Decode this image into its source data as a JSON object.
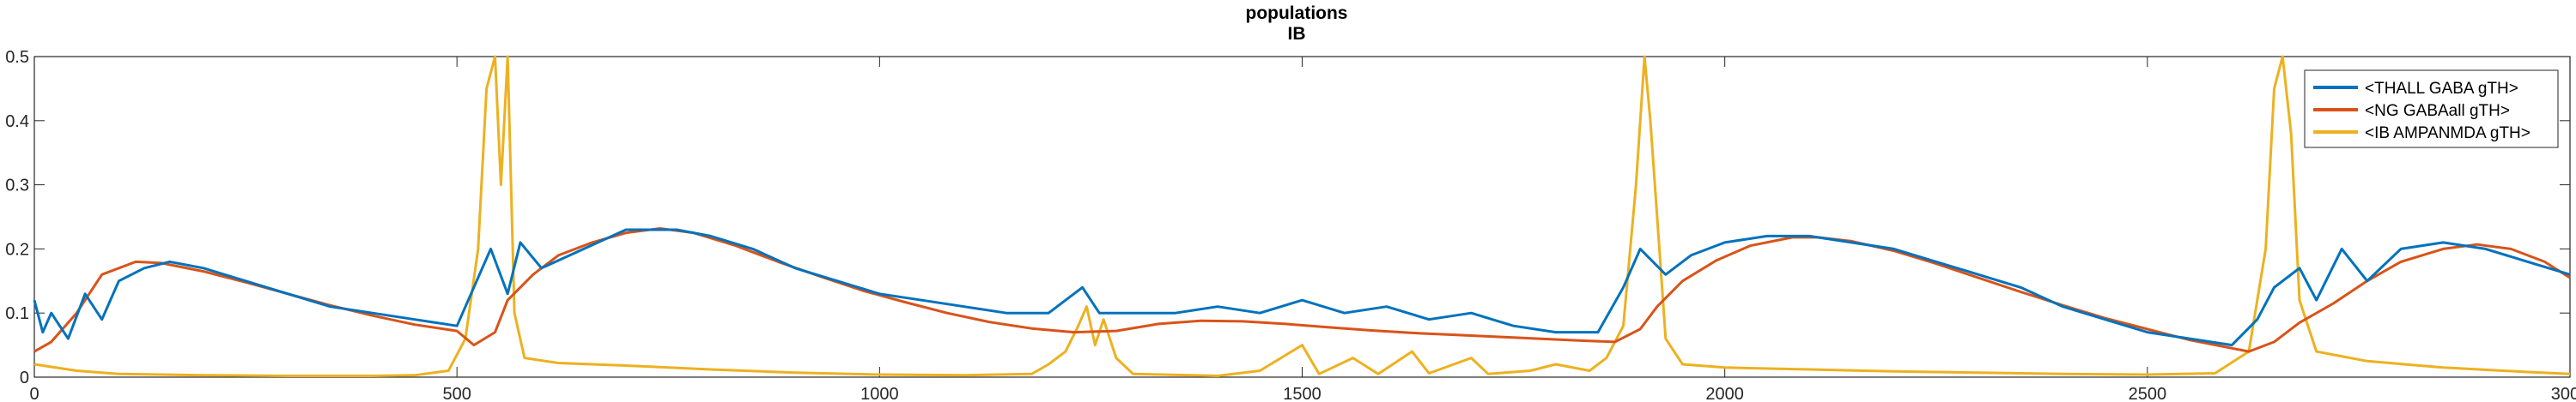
{
  "chart_data": {
    "type": "line",
    "title": "populations",
    "subtitle": "IB",
    "xlabel": "",
    "ylabel": "",
    "xlim": [
      0,
      3000
    ],
    "ylim": [
      0,
      0.5
    ],
    "x_ticks": [
      0,
      500,
      1000,
      1500,
      2000,
      2500,
      3000
    ],
    "y_ticks": [
      0,
      0.1,
      0.2,
      0.3,
      0.4,
      0.5
    ],
    "x_tick_labels": [
      "0",
      "500",
      "1000",
      "1500",
      "2000",
      "2500",
      "3000"
    ],
    "y_tick_labels": [
      "0",
      "0.1",
      "0.2",
      "0.3",
      "0.4",
      "0.5"
    ],
    "grid": false,
    "legend_position": "top-right",
    "series": [
      {
        "name": "<THALL GABA gTH>",
        "color": "#0072BD",
        "points": [
          [
            0,
            0.12
          ],
          [
            10,
            0.07
          ],
          [
            20,
            0.1
          ],
          [
            40,
            0.06
          ],
          [
            60,
            0.13
          ],
          [
            80,
            0.09
          ],
          [
            100,
            0.15
          ],
          [
            130,
            0.17
          ],
          [
            160,
            0.18
          ],
          [
            200,
            0.17
          ],
          [
            250,
            0.15
          ],
          [
            300,
            0.13
          ],
          [
            350,
            0.11
          ],
          [
            400,
            0.1
          ],
          [
            450,
            0.09
          ],
          [
            500,
            0.08
          ],
          [
            540,
            0.2
          ],
          [
            560,
            0.13
          ],
          [
            575,
            0.21
          ],
          [
            600,
            0.17
          ],
          [
            650,
            0.2
          ],
          [
            700,
            0.23
          ],
          [
            760,
            0.23
          ],
          [
            800,
            0.22
          ],
          [
            850,
            0.2
          ],
          [
            900,
            0.17
          ],
          [
            950,
            0.15
          ],
          [
            1000,
            0.13
          ],
          [
            1050,
            0.12
          ],
          [
            1100,
            0.11
          ],
          [
            1150,
            0.1
          ],
          [
            1200,
            0.1
          ],
          [
            1240,
            0.14
          ],
          [
            1260,
            0.1
          ],
          [
            1300,
            0.1
          ],
          [
            1350,
            0.1
          ],
          [
            1400,
            0.11
          ],
          [
            1450,
            0.1
          ],
          [
            1500,
            0.12
          ],
          [
            1550,
            0.1
          ],
          [
            1600,
            0.11
          ],
          [
            1650,
            0.09
          ],
          [
            1700,
            0.1
          ],
          [
            1750,
            0.08
          ],
          [
            1800,
            0.07
          ],
          [
            1850,
            0.07
          ],
          [
            1880,
            0.14
          ],
          [
            1900,
            0.2
          ],
          [
            1930,
            0.16
          ],
          [
            1960,
            0.19
          ],
          [
            2000,
            0.21
          ],
          [
            2050,
            0.22
          ],
          [
            2100,
            0.22
          ],
          [
            2150,
            0.21
          ],
          [
            2200,
            0.2
          ],
          [
            2250,
            0.18
          ],
          [
            2300,
            0.16
          ],
          [
            2350,
            0.14
          ],
          [
            2400,
            0.11
          ],
          [
            2450,
            0.09
          ],
          [
            2500,
            0.07
          ],
          [
            2550,
            0.06
          ],
          [
            2600,
            0.05
          ],
          [
            2630,
            0.09
          ],
          [
            2650,
            0.14
          ],
          [
            2680,
            0.17
          ],
          [
            2700,
            0.12
          ],
          [
            2730,
            0.2
          ],
          [
            2760,
            0.15
          ],
          [
            2800,
            0.2
          ],
          [
            2850,
            0.21
          ],
          [
            2900,
            0.2
          ],
          [
            2950,
            0.18
          ],
          [
            3000,
            0.16
          ]
        ]
      },
      {
        "name": "<NG GABAall gTH>",
        "color": "#D95319",
        "points": [
          [
            0,
            0.04
          ],
          [
            20,
            0.055
          ],
          [
            50,
            0.1
          ],
          [
            80,
            0.16
          ],
          [
            120,
            0.18
          ],
          [
            150,
            0.178
          ],
          [
            200,
            0.165
          ],
          [
            250,
            0.148
          ],
          [
            300,
            0.13
          ],
          [
            350,
            0.112
          ],
          [
            400,
            0.096
          ],
          [
            450,
            0.082
          ],
          [
            500,
            0.072
          ],
          [
            520,
            0.05
          ],
          [
            545,
            0.07
          ],
          [
            560,
            0.12
          ],
          [
            590,
            0.16
          ],
          [
            620,
            0.19
          ],
          [
            660,
            0.21
          ],
          [
            700,
            0.225
          ],
          [
            740,
            0.232
          ],
          [
            780,
            0.225
          ],
          [
            830,
            0.205
          ],
          [
            880,
            0.18
          ],
          [
            930,
            0.157
          ],
          [
            980,
            0.135
          ],
          [
            1030,
            0.117
          ],
          [
            1080,
            0.1
          ],
          [
            1130,
            0.086
          ],
          [
            1180,
            0.076
          ],
          [
            1230,
            0.07
          ],
          [
            1280,
            0.072
          ],
          [
            1330,
            0.083
          ],
          [
            1380,
            0.088
          ],
          [
            1430,
            0.087
          ],
          [
            1480,
            0.083
          ],
          [
            1530,
            0.078
          ],
          [
            1580,
            0.073
          ],
          [
            1630,
            0.069
          ],
          [
            1680,
            0.066
          ],
          [
            1730,
            0.063
          ],
          [
            1780,
            0.06
          ],
          [
            1830,
            0.057
          ],
          [
            1870,
            0.055
          ],
          [
            1900,
            0.075
          ],
          [
            1920,
            0.11
          ],
          [
            1950,
            0.15
          ],
          [
            1990,
            0.182
          ],
          [
            2030,
            0.205
          ],
          [
            2080,
            0.218
          ],
          [
            2110,
            0.218
          ],
          [
            2150,
            0.212
          ],
          [
            2200,
            0.197
          ],
          [
            2250,
            0.177
          ],
          [
            2300,
            0.155
          ],
          [
            2350,
            0.133
          ],
          [
            2400,
            0.112
          ],
          [
            2450,
            0.092
          ],
          [
            2500,
            0.075
          ],
          [
            2550,
            0.058
          ],
          [
            2600,
            0.045
          ],
          [
            2620,
            0.04
          ],
          [
            2650,
            0.055
          ],
          [
            2680,
            0.085
          ],
          [
            2720,
            0.115
          ],
          [
            2760,
            0.15
          ],
          [
            2800,
            0.18
          ],
          [
            2850,
            0.2
          ],
          [
            2890,
            0.207
          ],
          [
            2930,
            0.2
          ],
          [
            2970,
            0.18
          ],
          [
            3000,
            0.155
          ]
        ]
      },
      {
        "name": "<IB AMPANMDA gTH>",
        "color": "#EDB120",
        "points": [
          [
            0,
            0.02
          ],
          [
            50,
            0.01
          ],
          [
            100,
            0.005
          ],
          [
            200,
            0.003
          ],
          [
            300,
            0.002
          ],
          [
            400,
            0.002
          ],
          [
            450,
            0.003
          ],
          [
            490,
            0.01
          ],
          [
            510,
            0.06
          ],
          [
            525,
            0.2
          ],
          [
            535,
            0.45
          ],
          [
            545,
            0.5
          ],
          [
            552,
            0.3
          ],
          [
            560,
            0.5
          ],
          [
            568,
            0.1
          ],
          [
            580,
            0.03
          ],
          [
            620,
            0.022
          ],
          [
            700,
            0.018
          ],
          [
            800,
            0.012
          ],
          [
            900,
            0.007
          ],
          [
            1000,
            0.004
          ],
          [
            1100,
            0.003
          ],
          [
            1180,
            0.005
          ],
          [
            1200,
            0.02
          ],
          [
            1220,
            0.04
          ],
          [
            1235,
            0.08
          ],
          [
            1245,
            0.11
          ],
          [
            1255,
            0.05
          ],
          [
            1265,
            0.09
          ],
          [
            1280,
            0.03
          ],
          [
            1300,
            0.005
          ],
          [
            1400,
            0.002
          ],
          [
            1450,
            0.01
          ],
          [
            1500,
            0.05
          ],
          [
            1520,
            0.005
          ],
          [
            1560,
            0.03
          ],
          [
            1590,
            0.005
          ],
          [
            1630,
            0.04
          ],
          [
            1650,
            0.006
          ],
          [
            1700,
            0.03
          ],
          [
            1720,
            0.005
          ],
          [
            1770,
            0.01
          ],
          [
            1800,
            0.02
          ],
          [
            1840,
            0.01
          ],
          [
            1860,
            0.03
          ],
          [
            1880,
            0.08
          ],
          [
            1895,
            0.3
          ],
          [
            1905,
            0.5
          ],
          [
            1912,
            0.4
          ],
          [
            1920,
            0.25
          ],
          [
            1930,
            0.06
          ],
          [
            1950,
            0.02
          ],
          [
            2000,
            0.015
          ],
          [
            2100,
            0.012
          ],
          [
            2200,
            0.009
          ],
          [
            2300,
            0.007
          ],
          [
            2400,
            0.005
          ],
          [
            2500,
            0.004
          ],
          [
            2580,
            0.006
          ],
          [
            2620,
            0.04
          ],
          [
            2640,
            0.2
          ],
          [
            2650,
            0.45
          ],
          [
            2660,
            0.5
          ],
          [
            2670,
            0.38
          ],
          [
            2680,
            0.12
          ],
          [
            2700,
            0.04
          ],
          [
            2760,
            0.025
          ],
          [
            2850,
            0.015
          ],
          [
            2950,
            0.008
          ],
          [
            3000,
            0.005
          ]
        ]
      }
    ]
  }
}
